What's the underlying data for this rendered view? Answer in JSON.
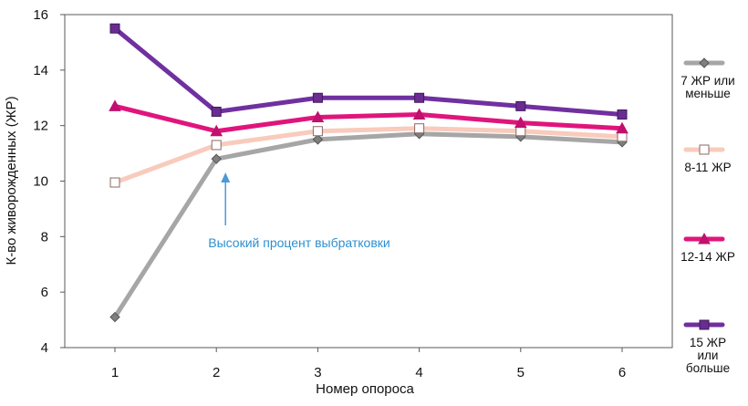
{
  "chart_data": {
    "type": "line",
    "title": "",
    "xlabel": "Номер опороса",
    "ylabel": "К-во живорожденных (ЖР)",
    "x": [
      1,
      2,
      3,
      4,
      5,
      6
    ],
    "x_tick_labels": [
      "1",
      "2",
      "3",
      "4",
      "5",
      "6"
    ],
    "ylim": [
      4,
      16
    ],
    "y_ticks": [
      4,
      6,
      8,
      10,
      12,
      14,
      16
    ],
    "y_tick_labels": [
      "4",
      "6",
      "8",
      "10",
      "12",
      "14",
      "16"
    ],
    "grid": false,
    "legend_position": "right",
    "series": [
      {
        "name": "7 ЖР или меньше",
        "name_lines": [
          "7 ЖР или",
          "меньше"
        ],
        "color": "#a6a6a6",
        "marker": "diamond",
        "marker_fill": "#7f7f7f",
        "values": [
          5.1,
          10.8,
          11.5,
          11.7,
          11.6,
          11.4
        ]
      },
      {
        "name": "8-11 ЖР",
        "name_lines": [
          "8-11 ЖР"
        ],
        "color": "#f8cbbc",
        "marker": "square",
        "marker_fill": "#ffffff",
        "values": [
          9.95,
          11.3,
          11.8,
          11.9,
          11.8,
          11.6
        ]
      },
      {
        "name": "12-14 ЖР",
        "name_lines": [
          "12-14 ЖР"
        ],
        "color": "#e0157c",
        "marker": "triangle",
        "marker_fill": "#c0116e",
        "values": [
          12.7,
          11.8,
          12.3,
          12.4,
          12.1,
          11.9
        ]
      },
      {
        "name": "15 ЖР или больше",
        "name_lines": [
          "15 ЖР",
          "или",
          "больше"
        ],
        "color": "#7030a0",
        "marker": "square",
        "marker_fill": "#6a2c91",
        "values": [
          15.5,
          12.5,
          13.0,
          13.0,
          12.7,
          12.4
        ]
      }
    ],
    "annotations": [
      {
        "text": "Высокий процент выбратковки",
        "points_to_x": 2,
        "color": "#4a9bd4"
      }
    ]
  }
}
